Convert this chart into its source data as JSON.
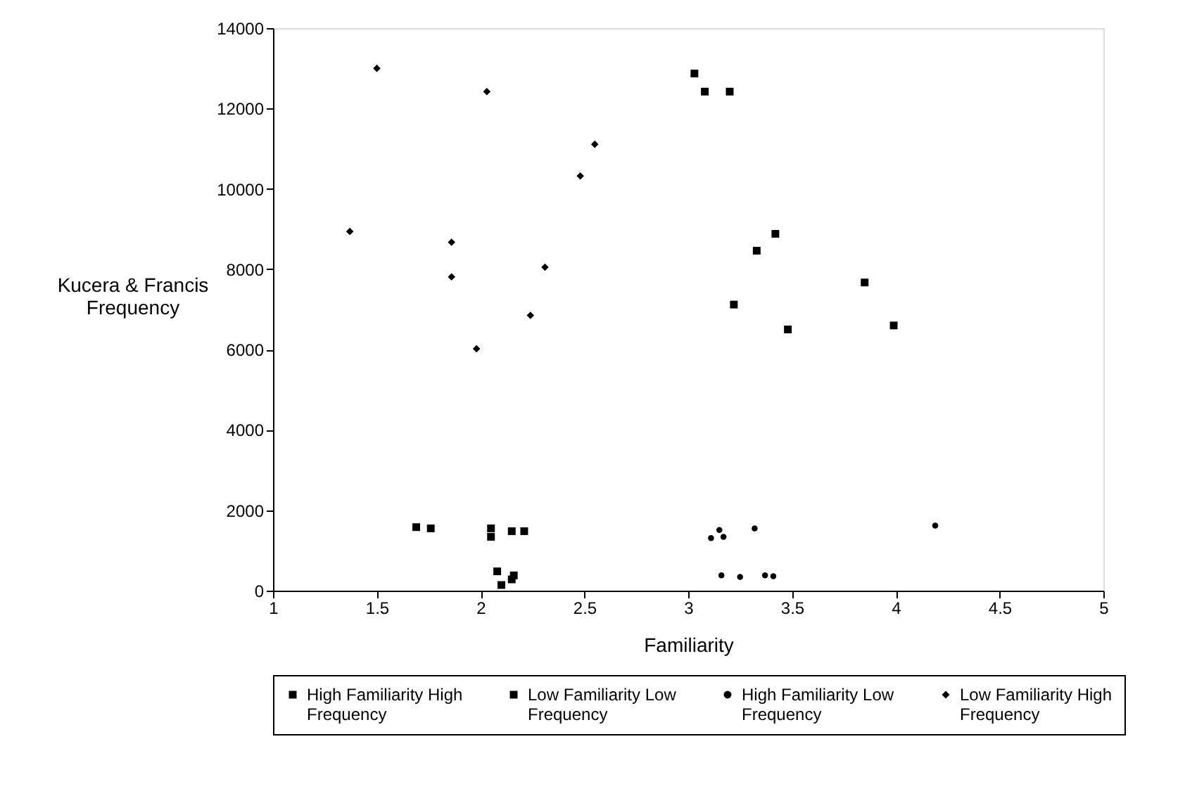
{
  "chart_data": {
    "type": "scatter",
    "xlabel": "Familiarity",
    "ylabel": "Kucera & Francis Frequency",
    "xlim": [
      1,
      5
    ],
    "xticks": [
      1,
      1.5,
      2,
      2.5,
      3,
      3.5,
      4,
      4.5,
      5
    ],
    "ylim": [
      0,
      14000
    ],
    "yticks": [
      0,
      2000,
      4000,
      6000,
      8000,
      10000,
      12000,
      14000
    ],
    "grid": false,
    "legend": "bottom",
    "series": [
      {
        "name": "High Familiarity High Frequency",
        "color": "#000000",
        "marker": "square",
        "x": [
          3.03,
          3.08,
          3.2,
          3.42,
          3.33,
          3.85,
          3.22,
          3.99,
          3.48
        ],
        "values": [
          12870,
          12420,
          12420,
          8880,
          8460,
          7670,
          7120,
          6600,
          6500
        ]
      },
      {
        "name": "Low Familiarity Low Frequency",
        "color": "#000000",
        "marker": "square",
        "x": [
          1.69,
          1.76,
          2.05,
          2.05,
          2.15,
          2.21,
          2.08,
          2.16,
          2.15,
          2.1
        ],
        "values": [
          1580,
          1550,
          1550,
          1340,
          1480,
          1480,
          480,
          380,
          280,
          140
        ]
      },
      {
        "name": "High Familiarity Low Frequency",
        "color": "#000000",
        "marker": "circle",
        "x": [
          3.11,
          3.15,
          3.17,
          3.32,
          4.19,
          3.16,
          3.25,
          3.37,
          3.41
        ],
        "values": [
          1310,
          1510,
          1340,
          1550,
          1620,
          380,
          340,
          380,
          360
        ]
      },
      {
        "name": "Low Familiarity High Frequency",
        "color": "#000000",
        "marker": "diamond",
        "x": [
          1.5,
          2.03,
          2.55,
          2.48,
          1.37,
          1.86,
          1.86,
          2.31,
          2.24,
          1.98
        ],
        "values": [
          13000,
          12420,
          11110,
          10320,
          8940,
          8670,
          7810,
          8050,
          6850,
          6020
        ]
      }
    ]
  }
}
